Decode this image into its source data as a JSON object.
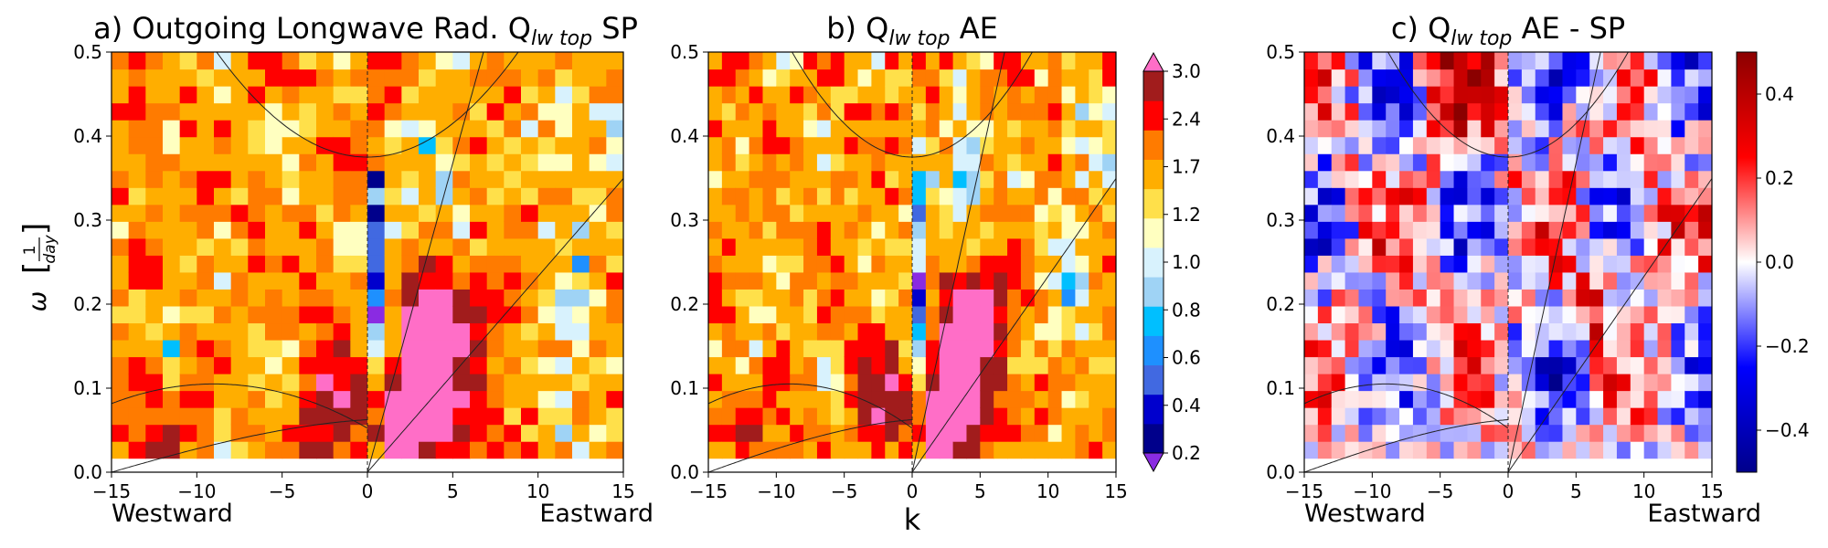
{
  "figure": {
    "ylabel_omega": "ω",
    "ylabel_fraction_num": "1",
    "ylabel_fraction_den": "day",
    "shared_xlabel": "k",
    "label_westward": "Westward",
    "label_eastward": "Eastward"
  },
  "colors": {
    "ratio_levels": [
      "#8a2be2",
      "#00008b",
      "#0000cd",
      "#4169e1",
      "#1e90ff",
      "#00bfff",
      "#9fd3f5",
      "#d8f2fd",
      "#ffffc0",
      "#ffe04a",
      "#ffae00",
      "#ff7b00",
      "#ff0000",
      "#a11c1c",
      "#ff6ec7"
    ],
    "diff_negative": "#00008b",
    "diff_zero": "#ffffff",
    "diff_positive": "#8b0000"
  },
  "chart_data": [
    {
      "type": "heatmap",
      "title_main": "a) Outgoing Longwave Rad. Q",
      "title_sub": "lw top",
      "title_tail": " SP",
      "xlabel": "",
      "ylabel": "ω [1/day]",
      "xlim": [
        -15,
        15
      ],
      "ylim": [
        0.0,
        0.5
      ],
      "x_ticks": [
        -15,
        -10,
        -5,
        0,
        5,
        10,
        15
      ],
      "x_tick_labels": [
        "−15",
        "−10",
        "−5",
        "0",
        "5",
        "10",
        "15"
      ],
      "y_ticks": [
        0.0,
        0.1,
        0.2,
        0.3,
        0.4,
        0.5
      ],
      "y_tick_labels": [
        "0.0",
        "0.1",
        "0.2",
        "0.3",
        "0.4",
        "0.5"
      ],
      "field": "ratio",
      "variant": 0,
      "dispersion_curves": true
    },
    {
      "type": "heatmap",
      "title_main": "b) Q",
      "title_sub": "lw top",
      "title_tail": " AE",
      "xlabel": "k",
      "xlim": [
        -15,
        15
      ],
      "ylim": [
        0.0,
        0.5
      ],
      "x_ticks": [
        -15,
        -10,
        -5,
        0,
        5,
        10,
        15
      ],
      "x_tick_labels": [
        "−15",
        "−10",
        "−5",
        "0",
        "5",
        "10",
        "15"
      ],
      "y_ticks": [
        0.0,
        0.1,
        0.2,
        0.3,
        0.4,
        0.5
      ],
      "y_tick_labels": [
        "0.0",
        "0.1",
        "0.2",
        "0.3",
        "0.4",
        "0.5"
      ],
      "field": "ratio",
      "variant": 1,
      "dispersion_curves": true,
      "colorbar": {
        "levels": [
          0.2,
          0.3,
          0.4,
          0.5,
          0.6,
          0.7,
          0.8,
          0.9,
          1.0,
          1.1,
          1.2,
          1.5,
          1.7,
          2.0,
          2.4,
          3.0
        ],
        "tick_labels": [
          "0.2",
          "0.4",
          "0.6",
          "0.8",
          "1.0",
          "1.2",
          "1.7",
          "2.4",
          "3.0"
        ],
        "extend": "both"
      }
    },
    {
      "type": "heatmap",
      "title_main": "c) Q",
      "title_sub": "lw top",
      "title_tail": " AE - SP",
      "xlabel": "",
      "xlim": [
        -15,
        15
      ],
      "ylim": [
        0.0,
        0.5
      ],
      "x_ticks": [
        -15,
        -10,
        -5,
        0,
        5,
        10,
        15
      ],
      "x_tick_labels": [
        "−15",
        "−10",
        "−5",
        "0",
        "5",
        "10",
        "15"
      ],
      "y_ticks": [
        0.0,
        0.1,
        0.2,
        0.3,
        0.4,
        0.5
      ],
      "y_tick_labels": [
        "0.0",
        "0.1",
        "0.2",
        "0.3",
        "0.4",
        "0.5"
      ],
      "field": "difference",
      "dispersion_curves": true,
      "colorbar": {
        "vlim": [
          -0.5,
          0.5
        ],
        "ticks": [
          -0.4,
          -0.2,
          0.0,
          0.2,
          0.4
        ],
        "tick_labels": [
          "−0.4",
          "−0.2",
          "0.0",
          "0.2",
          "0.4"
        ]
      }
    }
  ]
}
